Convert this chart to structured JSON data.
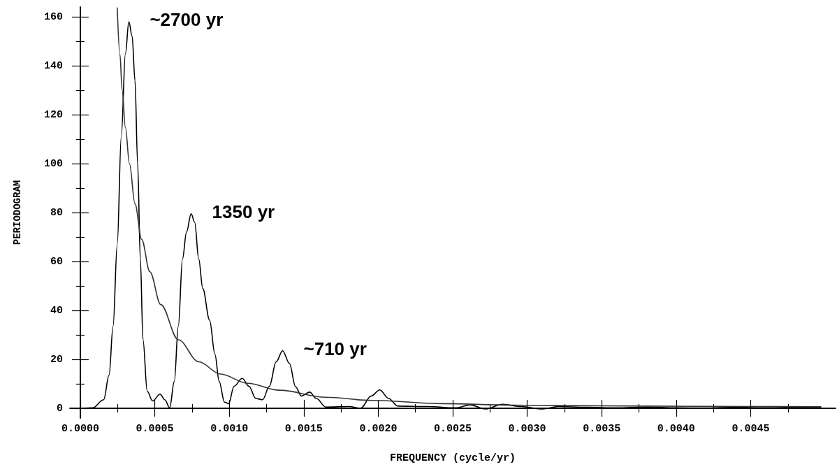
{
  "chart_data": {
    "type": "line",
    "xlabel": "FREQUENCY (cycle/yr)",
    "ylabel": "PERIODOGRAM",
    "marker": "none",
    "line_style": "solid",
    "xlim": [
      -7e-05,
      0.00507
    ],
    "ylim": [
      -4,
      164
    ],
    "xticks": [
      {
        "value": 0,
        "label": "0.0000"
      },
      {
        "value": 0.00025,
        "label": null
      },
      {
        "value": 0.0005,
        "label": "0.0005"
      },
      {
        "value": 0.00075,
        "label": null
      },
      {
        "value": 0.001,
        "label": "0.0010"
      },
      {
        "value": 0.00125,
        "label": null
      },
      {
        "value": 0.0015,
        "label": "0.0015"
      },
      {
        "value": 0.00175,
        "label": null
      },
      {
        "value": 0.002,
        "label": "0.0020"
      },
      {
        "value": 0.00225,
        "label": null
      },
      {
        "value": 0.0025,
        "label": "0.0025"
      },
      {
        "value": 0.00275,
        "label": null
      },
      {
        "value": 0.003,
        "label": "0.0030"
      },
      {
        "value": 0.00325,
        "label": null
      },
      {
        "value": 0.0035,
        "label": "0.0035"
      },
      {
        "value": 0.00375,
        "label": null
      },
      {
        "value": 0.004,
        "label": "0.0040"
      },
      {
        "value": 0.00425,
        "label": null
      },
      {
        "value": 0.0045,
        "label": "0.0045"
      },
      {
        "value": 0.00475,
        "label": null
      }
    ],
    "yticks": [
      0,
      {
        "value": 10,
        "label": null
      },
      20,
      {
        "value": 30,
        "label": null
      },
      40,
      {
        "value": 50,
        "label": null
      },
      60,
      {
        "value": 70,
        "label": null
      },
      80,
      {
        "value": 90,
        "label": null
      },
      100,
      {
        "value": 110,
        "label": null
      },
      120,
      {
        "value": 130,
        "label": null
      },
      140,
      {
        "value": 150,
        "label": null
      },
      160
    ],
    "series": [
      {
        "color": "#000000",
        "x": [
          1e-05,
          8.4e-05,
          0.000157,
          0.000193,
          0.00022,
          0.000248,
          0.000275,
          0.000303,
          0.000326,
          0.000348,
          0.000367,
          0.000385,
          0.000403,
          0.000421,
          0.000449,
          0.000485,
          0.000536,
          0.000567,
          0.0006,
          0.000631,
          0.000658,
          0.000686,
          0.000713,
          0.000744,
          0.000768,
          0.000795,
          0.000822,
          0.000868,
          0.000904,
          0.000932,
          0.000968,
          0.000996,
          0.001032,
          0.001087,
          0.001132,
          0.001178,
          0.001224,
          0.001269,
          0.001315,
          0.001358,
          0.001404,
          0.001445,
          0.001484,
          0.001539,
          0.001585,
          0.001648,
          0.001804,
          0.001882,
          0.001953,
          0.00201,
          0.00207,
          0.002132,
          0.002335,
          0.002522,
          0.002616,
          0.002718,
          0.002835,
          0.00296,
          0.0031,
          0.00321,
          0.0034,
          0.0036,
          0.0038,
          0.004,
          0.0042,
          0.0044,
          0.0046,
          0.0048,
          0.00497
        ],
        "values": [
          0,
          0.2,
          3.5,
          13.5,
          33.5,
          67,
          111,
          145,
          158,
          152,
          134,
          100,
          61,
          28,
          7,
          3,
          5.8,
          3.5,
          0.2,
          11,
          33.5,
          61,
          72,
          79.5,
          76,
          61,
          49,
          36,
          22,
          11,
          2.5,
          1.9,
          9,
          12.2,
          9,
          4,
          3.5,
          9,
          19,
          23.5,
          18.3,
          8.8,
          5,
          6.6,
          4,
          0.5,
          0.7,
          0,
          5,
          7.5,
          4,
          0.9,
          0.7,
          0.2,
          1.4,
          -0.3,
          1.6,
          0.7,
          -0.3,
          0.7,
          0.4,
          0.2,
          0.5,
          0.2,
          0.1,
          0.4,
          0.2,
          0.4,
          0.5
        ]
      },
      {
        "color": "#333333",
        "x": [
          0.000248,
          0.000266,
          0.000281,
          0.000303,
          0.00033,
          0.000367,
          0.000412,
          0.000467,
          0.00054,
          0.000658,
          0.000795,
          0.000941,
          0.001123,
          0.001336,
          0.001648,
          0.00196,
          0.002429,
          0.002897,
          0.00321,
          0.0038,
          0.0045,
          0.00497
        ],
        "values": [
          163.6,
          144.7,
          130,
          114.7,
          100,
          83.6,
          69,
          55.8,
          42.4,
          28,
          19,
          14,
          10.2,
          7.4,
          4.5,
          3.2,
          1.9,
          1.3,
          1.1,
          0.9,
          0.7,
          0.6
        ]
      }
    ],
    "annotations": [
      {
        "text": "~2700 yr",
        "x": 0.000326,
        "y": 158
      },
      {
        "text": "1350 yr",
        "x": 0.000744,
        "y": 79.5
      },
      {
        "text": "~710 yr",
        "x": 0.001358,
        "y": 23.5
      }
    ]
  }
}
